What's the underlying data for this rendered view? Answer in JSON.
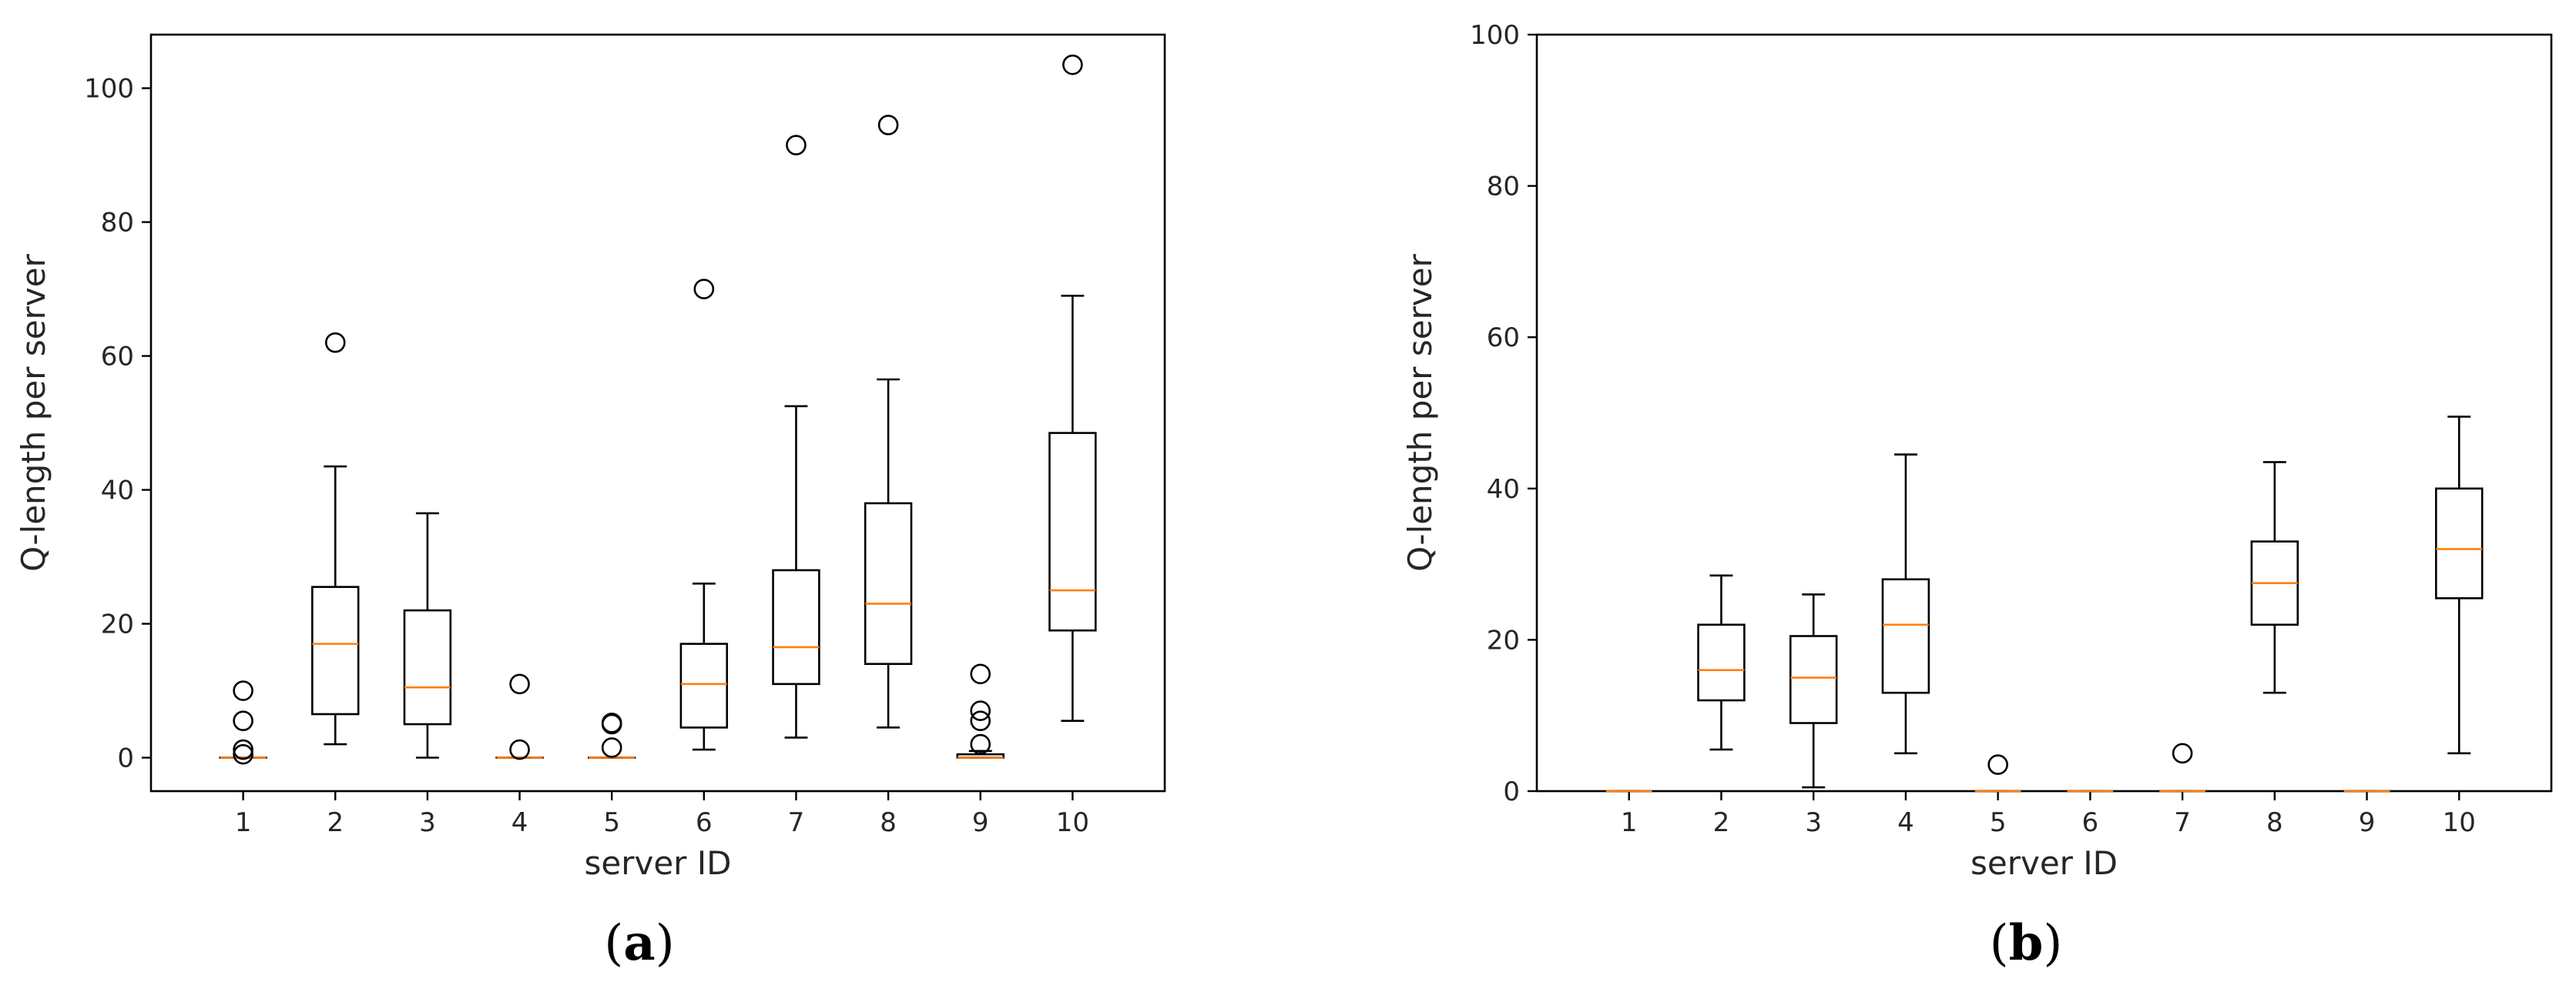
{
  "chart_data": [
    {
      "type": "boxplot",
      "panel_label": "a",
      "xlabel": "server ID",
      "ylabel": "Q-length per server",
      "categories": [
        "1",
        "2",
        "3",
        "4",
        "5",
        "6",
        "7",
        "8",
        "9",
        "10"
      ],
      "ylim": [
        -5,
        108
      ],
      "yticks": [
        0,
        20,
        40,
        60,
        80,
        100
      ],
      "boxes": [
        {
          "id": "1",
          "whislo": 0,
          "q1": 0,
          "med": 0,
          "q3": 0,
          "whishi": 0,
          "fliers": [
            10,
            5.5,
            1.2,
            0.5
          ]
        },
        {
          "id": "2",
          "whislo": 2,
          "q1": 6.5,
          "med": 17,
          "q3": 25.5,
          "whishi": 43.5,
          "fliers": [
            62
          ]
        },
        {
          "id": "3",
          "whislo": 0,
          "q1": 5,
          "med": 10.5,
          "q3": 22,
          "whishi": 36.5,
          "fliers": []
        },
        {
          "id": "4",
          "whislo": 0,
          "q1": 0,
          "med": 0,
          "q3": 0,
          "whishi": 0,
          "fliers": [
            11,
            1.2
          ]
        },
        {
          "id": "5",
          "whislo": 0,
          "q1": 0,
          "med": 0,
          "q3": 0,
          "whishi": 0,
          "fliers": [
            5.2,
            5,
            1.5
          ]
        },
        {
          "id": "6",
          "whislo": 1.2,
          "q1": 4.5,
          "med": 11,
          "q3": 17,
          "whishi": 26,
          "fliers": [
            70
          ]
        },
        {
          "id": "7",
          "whislo": 3,
          "q1": 11,
          "med": 16.5,
          "q3": 28,
          "whishi": 52.5,
          "fliers": [
            91.5
          ]
        },
        {
          "id": "8",
          "whislo": 4.5,
          "q1": 14,
          "med": 23,
          "q3": 38,
          "whishi": 56.5,
          "fliers": [
            94.5
          ]
        },
        {
          "id": "9",
          "whislo": 0,
          "q1": 0,
          "med": 0,
          "q3": 0.5,
          "whishi": 1,
          "fliers": [
            12.5,
            7,
            5.5,
            2
          ]
        },
        {
          "id": "10",
          "whislo": 5.5,
          "q1": 19,
          "med": 25,
          "q3": 48.5,
          "whishi": 69,
          "fliers": [
            103.5
          ]
        }
      ]
    },
    {
      "type": "boxplot",
      "panel_label": "b",
      "xlabel": "server ID",
      "ylabel": "Q-length per server",
      "categories": [
        "1",
        "2",
        "3",
        "4",
        "5",
        "6",
        "7",
        "8",
        "9",
        "10"
      ],
      "ylim": [
        0,
        100
      ],
      "yticks": [
        0,
        20,
        40,
        60,
        80,
        100
      ],
      "boxes": [
        {
          "id": "1",
          "whislo": 0,
          "q1": 0,
          "med": 0,
          "q3": 0,
          "whishi": 0,
          "fliers": []
        },
        {
          "id": "2",
          "whislo": 5.5,
          "q1": 12,
          "med": 16,
          "q3": 22,
          "whishi": 28.5,
          "fliers": []
        },
        {
          "id": "3",
          "whislo": 0.5,
          "q1": 9,
          "med": 15,
          "q3": 20.5,
          "whishi": 26,
          "fliers": []
        },
        {
          "id": "4",
          "whislo": 5,
          "q1": 13,
          "med": 22,
          "q3": 28,
          "whishi": 44.5,
          "fliers": []
        },
        {
          "id": "5",
          "whislo": 0,
          "q1": 0,
          "med": 0,
          "q3": 0,
          "whishi": 0,
          "fliers": [
            3.5
          ]
        },
        {
          "id": "6",
          "whislo": 0,
          "q1": 0,
          "med": 0,
          "q3": 0,
          "whishi": 0,
          "fliers": []
        },
        {
          "id": "7",
          "whislo": 0,
          "q1": 0,
          "med": 0,
          "q3": 0,
          "whishi": 0,
          "fliers": [
            5
          ]
        },
        {
          "id": "8",
          "whislo": 13,
          "q1": 22,
          "med": 27.5,
          "q3": 33,
          "whishi": 43.5,
          "fliers": []
        },
        {
          "id": "9",
          "whislo": 0,
          "q1": 0,
          "med": 0,
          "q3": 0,
          "whishi": 0,
          "fliers": []
        },
        {
          "id": "10",
          "whislo": 5,
          "q1": 25.5,
          "med": 32,
          "q3": 40,
          "whishi": 49.5,
          "fliers": []
        }
      ]
    }
  ],
  "colors": {
    "box": "#000000",
    "median": "#ff7f0e",
    "text": "#262626"
  }
}
